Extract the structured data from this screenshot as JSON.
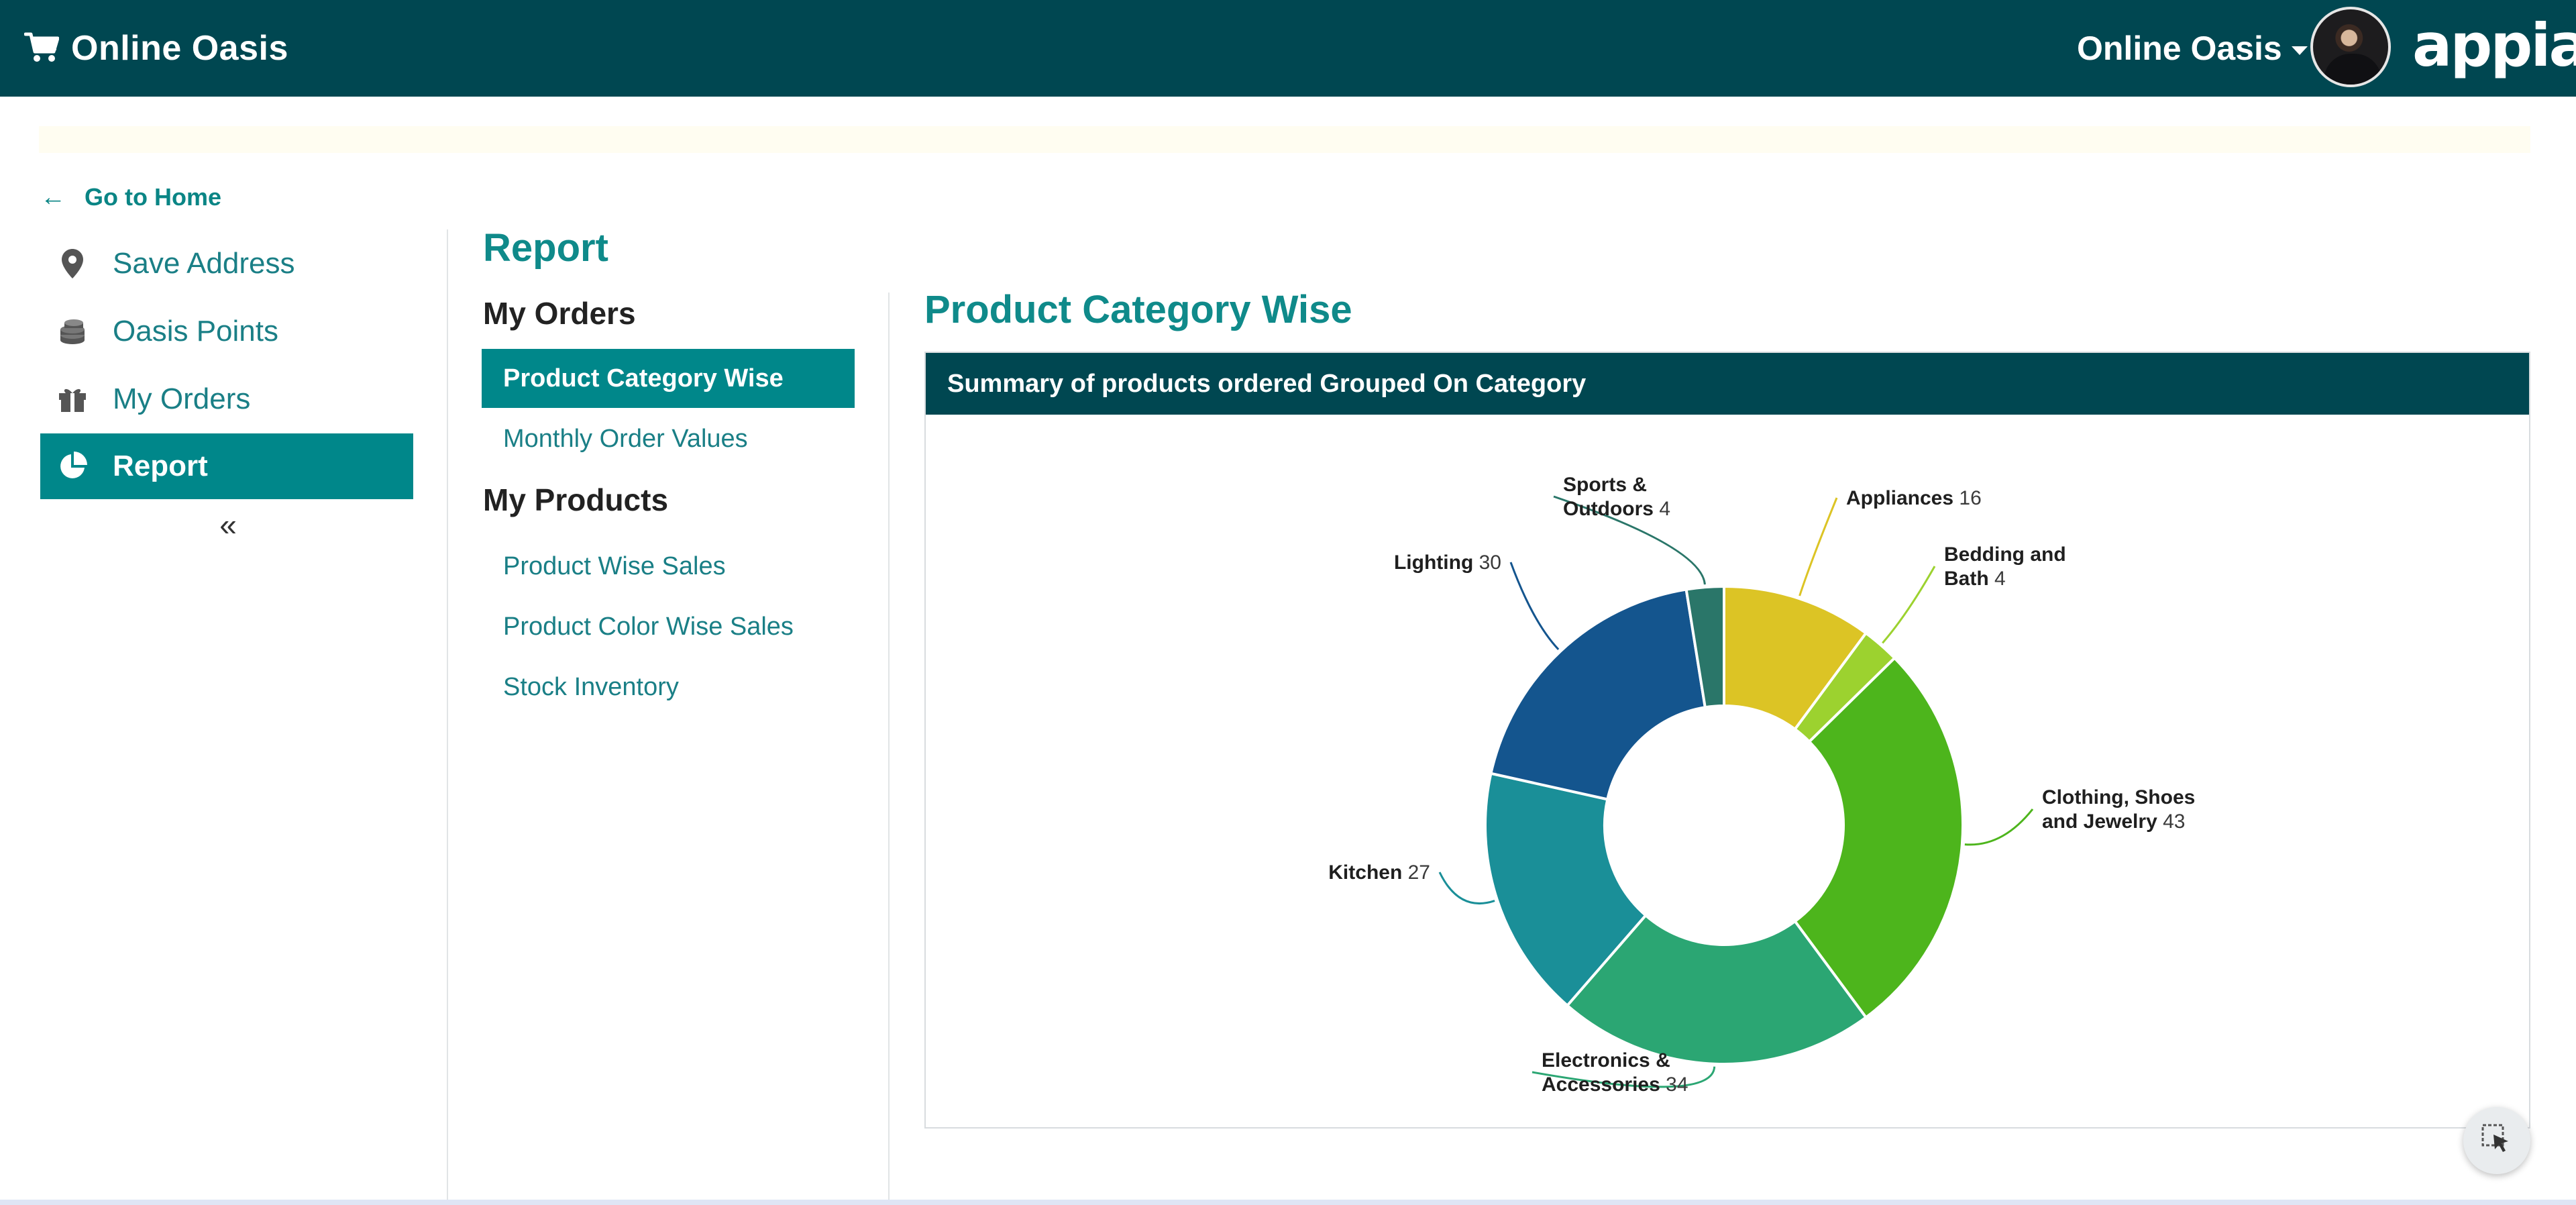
{
  "header": {
    "app_title": "Online Oasis",
    "brand_icon": "shopping-cart-icon",
    "user_menu_label": "Online Oasis",
    "logo_text": "appian"
  },
  "sidebar": {
    "go_home_label": "Go to Home",
    "items": [
      {
        "label": "Save Address",
        "icon": "map-marker-icon",
        "active": false
      },
      {
        "label": "Oasis Points",
        "icon": "coins-icon",
        "active": false
      },
      {
        "label": "My Orders",
        "icon": "gift-icon",
        "active": false
      },
      {
        "label": "Report",
        "icon": "pie-chart-icon",
        "active": true
      }
    ],
    "collapse_glyph": "«"
  },
  "report_menu": {
    "title": "Report",
    "sections": [
      {
        "title": "My Orders",
        "items": [
          {
            "label": "Product Category Wise",
            "active": true
          },
          {
            "label": "Monthly Order Values",
            "active": false
          }
        ]
      },
      {
        "title": "My Products",
        "items": [
          {
            "label": "Product Wise Sales",
            "active": false
          },
          {
            "label": "Product Color Wise Sales",
            "active": false
          },
          {
            "label": "Stock Inventory",
            "active": false
          }
        ]
      }
    ]
  },
  "content": {
    "title": "Product Category Wise",
    "card_header": "Summary of products ordered Grouped On Category"
  },
  "colors": {
    "header_bg": "#004751",
    "accent": "#00878a",
    "link": "#1a7f86"
  },
  "chart_data": {
    "type": "pie",
    "donut": true,
    "slices": [
      {
        "label": "Appliances",
        "value": 16,
        "color": "#dcc425"
      },
      {
        "label": "Bedding and Bath",
        "value": 4,
        "color": "#9cd22f"
      },
      {
        "label": "Clothing, Shoes and Jewelry",
        "value": 43,
        "color": "#4db51c"
      },
      {
        "label": "Electronics & Accessories",
        "value": 34,
        "color": "#2ba673"
      },
      {
        "label": "Kitchen",
        "value": 27,
        "color": "#1a8f98"
      },
      {
        "label": "Lighting",
        "value": 30,
        "color": "#14558e"
      },
      {
        "label": "Sports & Outdoors",
        "value": 4,
        "color": "#2a7669"
      }
    ]
  }
}
